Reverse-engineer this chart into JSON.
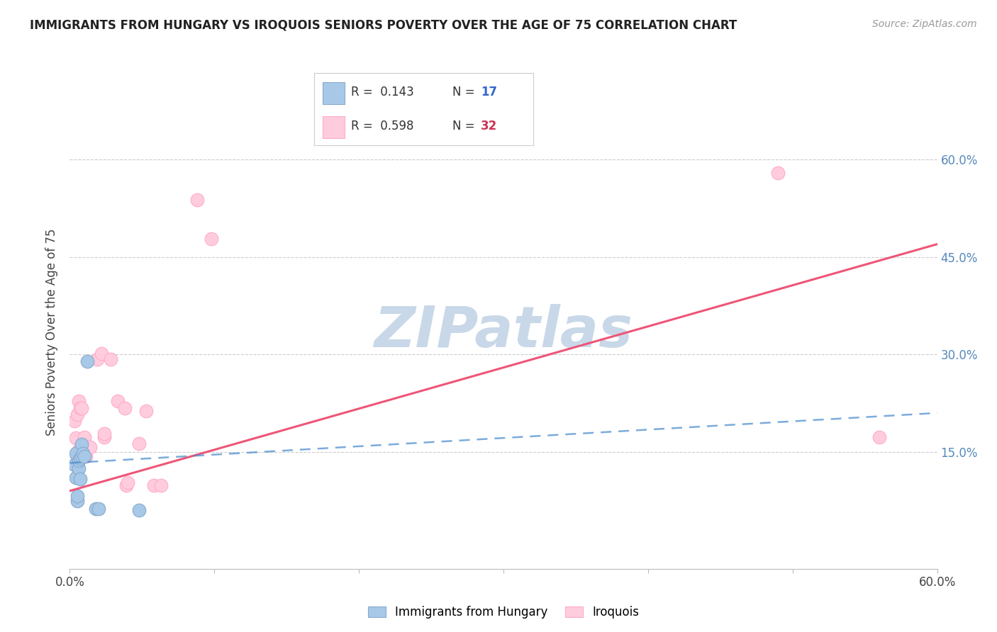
{
  "title": "IMMIGRANTS FROM HUNGARY VS IROQUOIS SENIORS POVERTY OVER THE AGE OF 75 CORRELATION CHART",
  "source": "Source: ZipAtlas.com",
  "ylabel": "Seniors Poverty Over the Age of 75",
  "xlim": [
    0.0,
    0.6
  ],
  "ylim": [
    -0.03,
    0.7
  ],
  "watermark": "ZIPatlas",
  "blue_r": "0.143",
  "blue_n": "17",
  "pink_r": "0.598",
  "pink_n": "32",
  "blue_scatter_x": [
    0.003,
    0.004,
    0.004,
    0.005,
    0.005,
    0.006,
    0.006,
    0.007,
    0.007,
    0.008,
    0.008,
    0.009,
    0.01,
    0.012,
    0.018,
    0.02,
    0.048
  ],
  "blue_scatter_y": [
    0.13,
    0.148,
    0.11,
    0.075,
    0.082,
    0.125,
    0.137,
    0.14,
    0.108,
    0.143,
    0.162,
    0.148,
    0.143,
    0.29,
    0.063,
    0.063,
    0.06
  ],
  "pink_scatter_x": [
    0.003,
    0.004,
    0.005,
    0.005,
    0.006,
    0.006,
    0.007,
    0.007,
    0.008,
    0.008,
    0.009,
    0.01,
    0.01,
    0.011,
    0.014,
    0.019,
    0.022,
    0.024,
    0.024,
    0.028,
    0.033,
    0.038,
    0.039,
    0.04,
    0.048,
    0.053,
    0.058,
    0.063,
    0.088,
    0.098,
    0.49,
    0.56
  ],
  "pink_scatter_y": [
    0.198,
    0.172,
    0.143,
    0.208,
    0.153,
    0.228,
    0.143,
    0.218,
    0.143,
    0.218,
    0.143,
    0.158,
    0.173,
    0.143,
    0.158,
    0.293,
    0.302,
    0.173,
    0.178,
    0.293,
    0.228,
    0.218,
    0.098,
    0.103,
    0.163,
    0.213,
    0.098,
    0.098,
    0.538,
    0.478,
    0.58,
    0.173
  ],
  "blue_line_x": [
    0.0,
    0.6
  ],
  "blue_line_y": [
    0.133,
    0.21
  ],
  "pink_line_x": [
    0.0,
    0.6
  ],
  "pink_line_y": [
    0.09,
    0.47
  ],
  "grid_color": "#cccccc",
  "blue_scatter_color": "#a8c8e8",
  "blue_scatter_edge": "#88aacc",
  "pink_scatter_color": "#ffccdd",
  "pink_scatter_edge": "#ffaacc",
  "blue_line_color": "#4488cc",
  "pink_line_color": "#ee5577",
  "background_color": "#ffffff",
  "watermark_color": "#c8d8e8",
  "legend_border_color": "#cccccc",
  "right_tick_color": "#5588bb",
  "title_color": "#222222",
  "label_color": "#444444"
}
